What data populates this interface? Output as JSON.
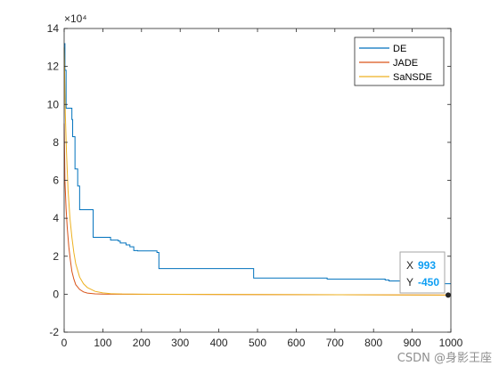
{
  "chart_data": {
    "type": "line",
    "title": "",
    "xlabel": "",
    "ylabel": "",
    "xlim": [
      0,
      1000
    ],
    "ylim": [
      -20000,
      140000
    ],
    "y_exponent_label": "×10⁴",
    "x_ticks": [
      0,
      100,
      200,
      300,
      400,
      500,
      600,
      700,
      800,
      900,
      1000
    ],
    "x_tick_labels": [
      "0",
      "100",
      "200",
      "300",
      "400",
      "500",
      "600",
      "700",
      "800",
      "900",
      "1000"
    ],
    "y_ticks": [
      -20000,
      0,
      20000,
      40000,
      60000,
      80000,
      100000,
      120000,
      140000
    ],
    "y_tick_labels": [
      "-2",
      "0",
      "2",
      "4",
      "6",
      "8",
      "10",
      "12",
      "14"
    ],
    "grid": false,
    "legend_position": "top-right",
    "series": [
      {
        "name": "DE",
        "color": "#0072BD",
        "step": true,
        "x": [
          0,
          2,
          5,
          20,
          22,
          28,
          35,
          40,
          45,
          50,
          75,
          80,
          120,
          140,
          145,
          160,
          170,
          180,
          190,
          220,
          240,
          245,
          480,
          490,
          500,
          600,
          650,
          680,
          800,
          830,
          840,
          870,
          880,
          900,
          1000
        ],
        "y": [
          132000,
          118000,
          98000,
          92000,
          83000,
          66000,
          57000,
          44500,
          44500,
          44500,
          30000,
          30000,
          28500,
          28000,
          27000,
          26000,
          25000,
          23000,
          22800,
          22800,
          22000,
          13500,
          13500,
          8500,
          8500,
          8500,
          8500,
          8000,
          8000,
          7500,
          7000,
          6000,
          5000,
          5500,
          5500
        ]
      },
      {
        "name": "JADE",
        "color": "#D95319",
        "step": false,
        "x": [
          0,
          2,
          5,
          8,
          12,
          16,
          20,
          25,
          30,
          40,
          50,
          60,
          80,
          100,
          130,
          1000
        ],
        "y": [
          90000,
          60000,
          45000,
          35000,
          25000,
          18000,
          12000,
          8000,
          5000,
          2500,
          1200,
          600,
          200,
          50,
          0,
          -450
        ]
      },
      {
        "name": "SaNSDE",
        "color": "#EDB120",
        "step": false,
        "x": [
          0,
          3,
          6,
          10,
          15,
          20,
          25,
          30,
          40,
          50,
          60,
          80,
          100,
          120,
          150,
          200,
          1000
        ],
        "y": [
          130000,
          95000,
          75000,
          55000,
          40000,
          30000,
          22000,
          16000,
          9000,
          5500,
          3500,
          1500,
          700,
          300,
          100,
          0,
          -450
        ]
      }
    ],
    "datatip": {
      "x_label": "X",
      "x_value": "993",
      "y_label": "Y",
      "y_value": "-450",
      "x": 993,
      "y": -450
    }
  },
  "watermark": "CSDN @身影王座"
}
